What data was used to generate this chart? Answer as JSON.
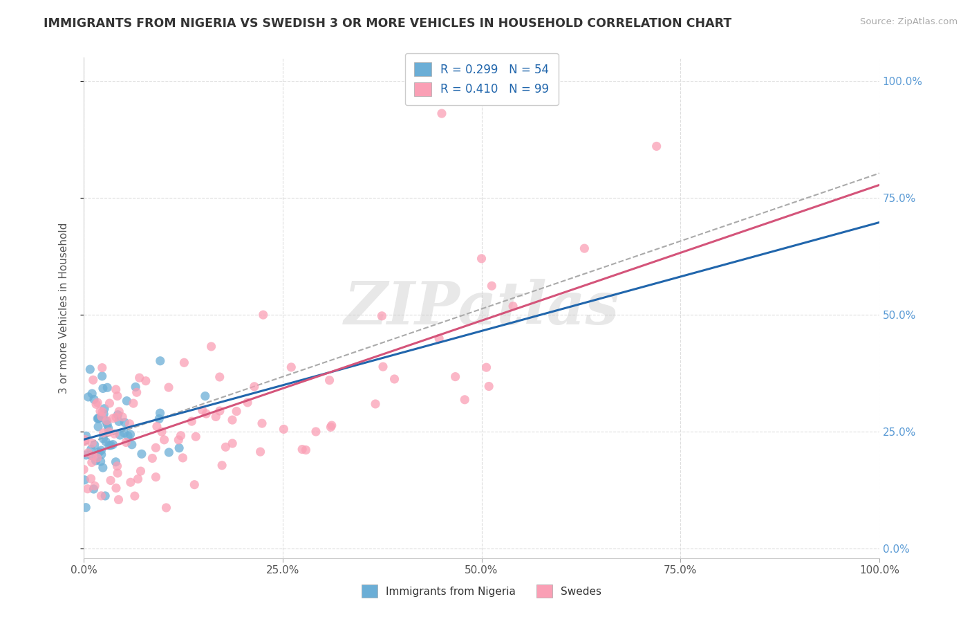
{
  "title": "IMMIGRANTS FROM NIGERIA VS SWEDISH 3 OR MORE VEHICLES IN HOUSEHOLD CORRELATION CHART",
  "source": "Source: ZipAtlas.com",
  "ylabel": "3 or more Vehicles in Household",
  "legend_label_1": "Immigrants from Nigeria",
  "legend_label_2": "Swedes",
  "R1": "0.299",
  "N1": 54,
  "R2": "0.410",
  "N2": 99,
  "color1": "#6baed6",
  "color2": "#fa9fb5",
  "trendline_color1": "#2166ac",
  "trendline_color2": "#d4547a",
  "dashed_color": "#aaaaaa",
  "x_ticks": [
    0.0,
    0.25,
    0.5,
    0.75,
    1.0
  ],
  "x_tick_labels": [
    "0.0%",
    "25.0%",
    "50.0%",
    "75.0%",
    "100.0%"
  ],
  "y_ticks": [
    0.0,
    0.25,
    0.5,
    0.75,
    1.0
  ],
  "y_tick_labels_right": [
    "0.0%",
    "25.0%",
    "50.0%",
    "75.0%",
    "100.0%"
  ],
  "watermark": "ZIPatlas",
  "background_color": "#ffffff",
  "grid_color": "#dddddd",
  "xlim": [
    0.0,
    1.0
  ],
  "ylim": [
    -0.02,
    1.05
  ]
}
